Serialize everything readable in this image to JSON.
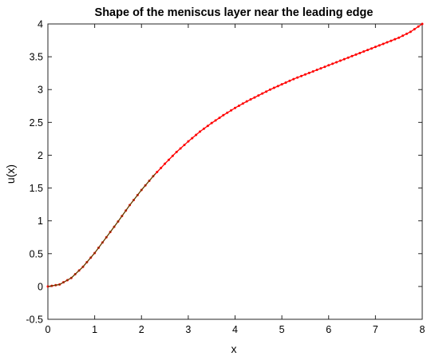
{
  "chart_data": {
    "type": "line",
    "title": "Shape of the meniscus layer near the leading edge",
    "xlabel": "x",
    "ylabel": "u(x)",
    "xlim": [
      0,
      8
    ],
    "ylim": [
      -0.5,
      4
    ],
    "xticks": [
      "0",
      "1",
      "2",
      "3",
      "4",
      "5",
      "6",
      "7",
      "8"
    ],
    "yticks": [
      "-0.5",
      "0",
      "0.5",
      "1",
      "1.5",
      "2",
      "2.5",
      "3",
      "3.5",
      "4"
    ],
    "grid": false,
    "series": [
      {
        "color": "#ff0000",
        "marker": "dot",
        "x": [
          0,
          0.25,
          0.5,
          0.75,
          1.0,
          1.25,
          1.5,
          1.75,
          2.0,
          2.25,
          2.5,
          2.75,
          3.0,
          3.25,
          3.5,
          3.75,
          4.0,
          4.25,
          4.5,
          4.75,
          5.0,
          5.25,
          5.5,
          5.75,
          6.0,
          6.25,
          6.5,
          6.75,
          7.0,
          7.25,
          7.5,
          7.75,
          8.0
        ],
        "y": [
          0.0,
          0.03,
          0.13,
          0.3,
          0.51,
          0.75,
          0.99,
          1.24,
          1.47,
          1.68,
          1.87,
          2.05,
          2.21,
          2.36,
          2.49,
          2.61,
          2.72,
          2.82,
          2.91,
          3.0,
          3.08,
          3.16,
          3.23,
          3.3,
          3.37,
          3.44,
          3.51,
          3.58,
          3.65,
          3.72,
          3.79,
          3.88,
          4.0
        ]
      },
      {
        "color": "#4d4d00",
        "x": [
          0,
          0.25,
          0.5,
          0.75,
          1.0,
          1.25,
          1.5,
          1.75,
          2.0,
          2.25,
          2.3
        ],
        "y": [
          0.0,
          0.03,
          0.13,
          0.3,
          0.51,
          0.75,
          0.99,
          1.24,
          1.47,
          1.68,
          1.72
        ]
      }
    ]
  }
}
